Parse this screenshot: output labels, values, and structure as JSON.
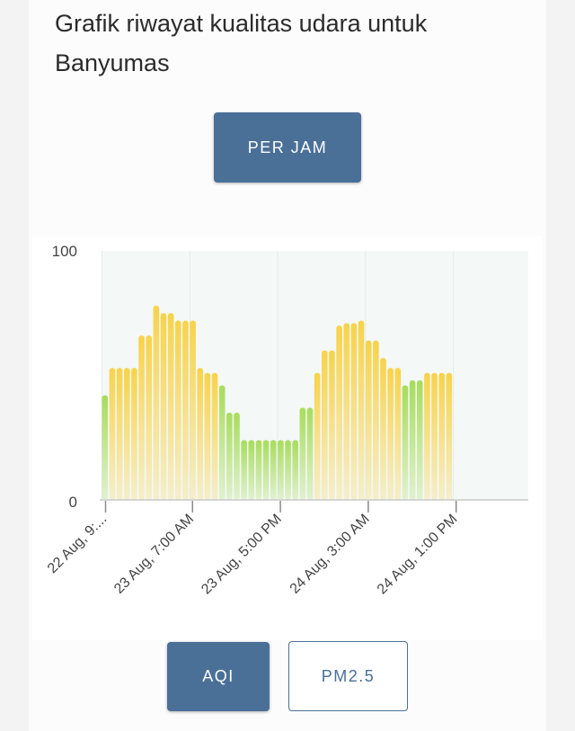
{
  "page": {
    "title": "Grafik riwayat kualitas udara untuk Banyumas"
  },
  "controls": {
    "period_label": "PER JAM",
    "metric_buttons": [
      {
        "label": "AQI",
        "active": true
      },
      {
        "label": "PM2.5",
        "active": false
      }
    ]
  },
  "colors": {
    "good": "#a8dc5c",
    "moderate": "#f7d34a",
    "button": "#4a7098",
    "plot_background": "#f4f8f7"
  },
  "chart_data": {
    "type": "bar",
    "ylim": [
      0,
      100
    ],
    "yticks": [
      0,
      100
    ],
    "xtick_labels": [
      "22 Aug, 9:...",
      "23 Aug, 7:00 AM",
      "23 Aug, 5:00 PM",
      "24 Aug, 3:00 AM",
      "24 Aug, 1:00 PM"
    ],
    "series": [
      {
        "values": [
          42,
          53,
          53,
          53,
          53,
          66,
          66,
          78,
          75,
          75,
          72,
          72,
          72,
          53,
          51,
          51,
          46,
          35,
          35,
          24,
          24,
          24,
          24,
          24,
          24,
          24,
          24,
          37,
          37,
          51,
          60,
          60,
          70,
          71,
          71,
          72,
          64,
          64,
          57,
          53,
          53,
          46,
          48,
          48,
          51,
          51,
          51,
          51
        ]
      }
    ],
    "good_threshold": 50
  }
}
